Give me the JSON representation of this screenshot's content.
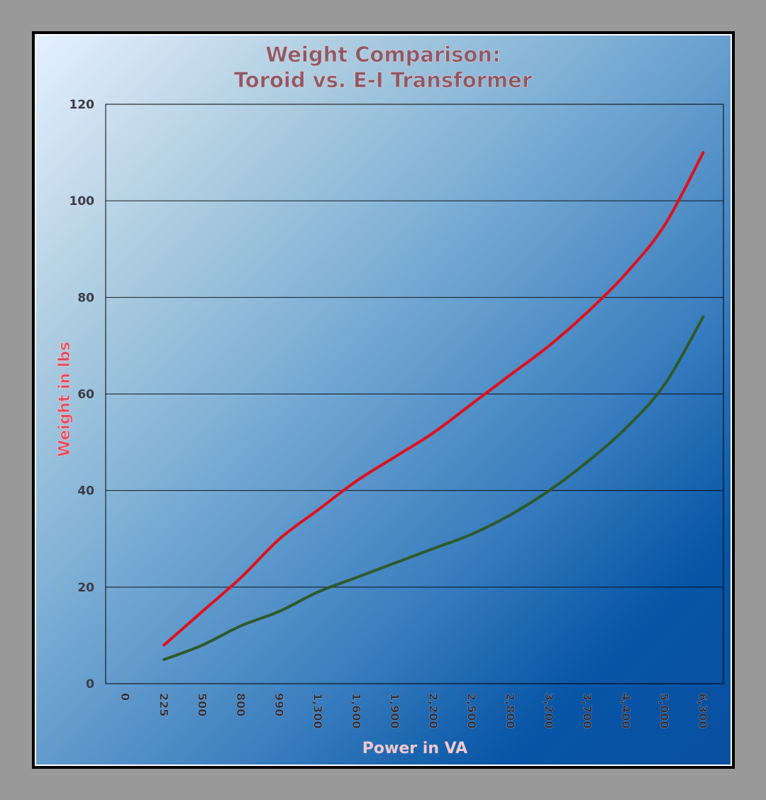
{
  "chart_data": {
    "type": "line",
    "title_lines": [
      "Weight Comparison:",
      "Toroid vs. E-I Transformer"
    ],
    "xlabel": "Power in VA",
    "ylabel": "Weight in lbs",
    "categories": [
      "0",
      "225",
      "500",
      "800",
      "990",
      "1,300",
      "1,600",
      "1,900",
      "2,200",
      "2,500",
      "2,800",
      "3,200",
      "3,700",
      "4,400",
      "5,000",
      "6,300"
    ],
    "ylim": [
      0,
      120
    ],
    "yticks": [
      "0",
      "20",
      "40",
      "60",
      "80",
      "100",
      "120"
    ],
    "yticks_values": [
      0,
      20,
      40,
      60,
      80,
      100,
      120
    ],
    "grid": "horizontal",
    "series": [
      {
        "color": "#e0101c",
        "values": [
          null,
          8,
          15,
          22,
          30,
          36,
          42,
          47,
          52,
          58,
          64,
          70,
          77,
          85,
          95,
          110
        ]
      },
      {
        "color": "#2e5a2a",
        "values": [
          null,
          5,
          8,
          12,
          15,
          19,
          22,
          25,
          28,
          31,
          35,
          40,
          46,
          53,
          62,
          76
        ]
      }
    ]
  },
  "colors": {
    "page_background": "#999999",
    "frame_border": "#000000",
    "gradient_light": "#e6f0ff",
    "gradient_dark": "#0a4fa0"
  }
}
